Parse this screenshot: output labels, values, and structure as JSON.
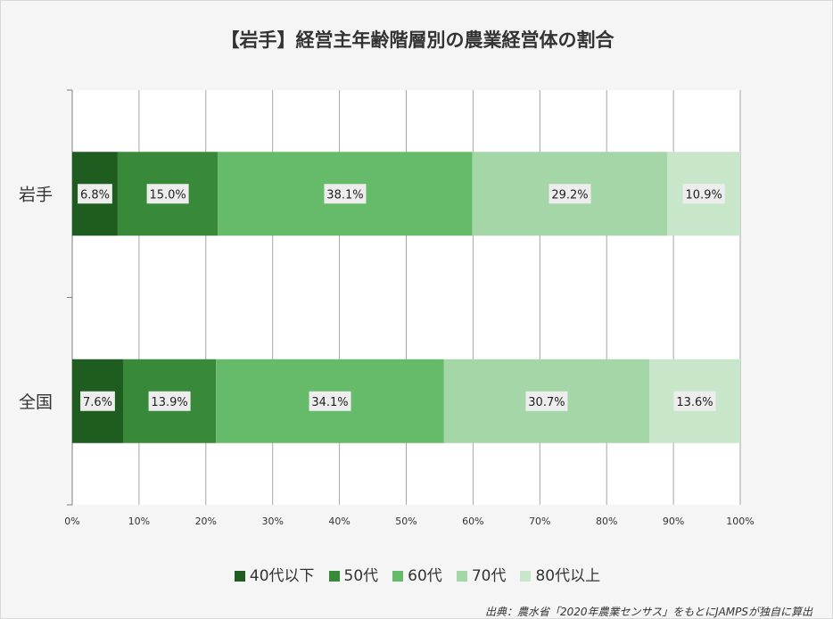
{
  "chart_data": {
    "type": "bar",
    "orientation": "horizontal",
    "stacked": "percent",
    "title": "【岩手】経営主年齢階層別の農業経営体の割合",
    "categories": [
      "岩手",
      "全国"
    ],
    "series": [
      {
        "name": "40代以下",
        "color": "#1e5c20",
        "values": [
          6.8,
          7.6
        ]
      },
      {
        "name": "50代",
        "color": "#388a3a",
        "values": [
          15.0,
          13.9
        ]
      },
      {
        "name": "60代",
        "color": "#66bb6a",
        "values": [
          38.1,
          34.1
        ]
      },
      {
        "name": "70代",
        "color": "#a5d6a7",
        "values": [
          29.2,
          30.7
        ]
      },
      {
        "name": "80代以上",
        "color": "#c8e6c9",
        "values": [
          10.9,
          13.6
        ]
      }
    ],
    "data_labels": [
      [
        "6.8%",
        "15.0%",
        "38.1%",
        "29.2%",
        "10.9%"
      ],
      [
        "7.6%",
        "13.9%",
        "34.1%",
        "30.7%",
        "13.6%"
      ]
    ],
    "xticks": [
      "0%",
      "10%",
      "20%",
      "30%",
      "40%",
      "50%",
      "60%",
      "70%",
      "80%",
      "90%",
      "100%"
    ],
    "xlim": [
      0,
      100
    ],
    "grid": true,
    "legend_position": "bottom"
  },
  "source": "出典：農水省「2020年農業センサス」をもとにJAMPSが独自に算出"
}
